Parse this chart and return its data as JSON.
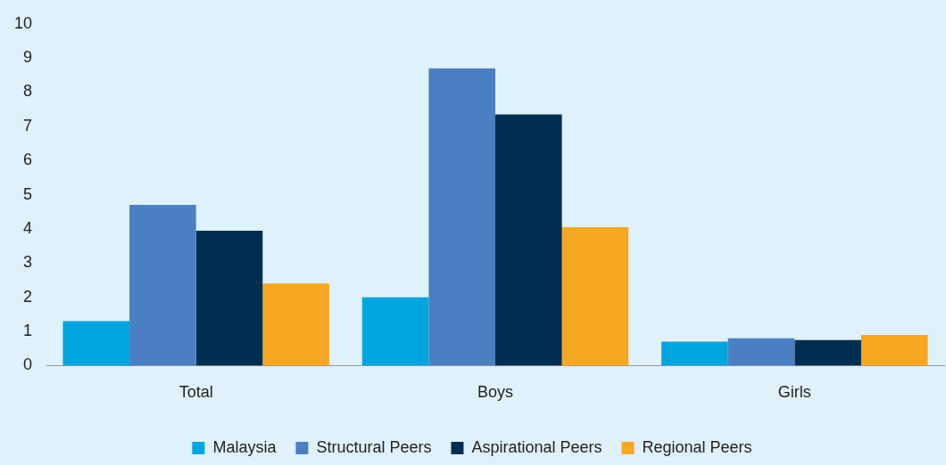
{
  "chart_data": {
    "type": "bar",
    "categories": [
      "Total",
      "Boys",
      "Girls"
    ],
    "series": [
      {
        "name": "Malaysia",
        "color": "#00a5e0",
        "values": [
          1.3,
          2.0,
          0.7
        ]
      },
      {
        "name": "Structural Peers",
        "color": "#4a80c2",
        "values": [
          4.7,
          8.7,
          0.8
        ]
      },
      {
        "name": "Aspirational Peers",
        "color": "#002e50",
        "values": [
          3.95,
          7.35,
          0.75
        ]
      },
      {
        "name": "Regional Peers",
        "color": "#f7a823",
        "values": [
          2.4,
          4.05,
          0.9
        ]
      }
    ],
    "ylim": [
      0,
      10
    ],
    "yticks": [
      0,
      1,
      2,
      3,
      4,
      5,
      6,
      7,
      8,
      9,
      10
    ],
    "grid": false,
    "legend": "bottom"
  }
}
